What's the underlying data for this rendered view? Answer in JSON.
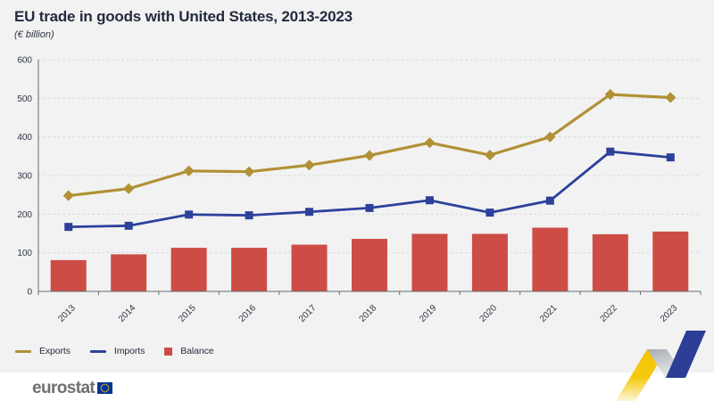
{
  "header": {
    "title": "EU trade in goods with United States, 2013-2023",
    "subtitle": "(€ billion)"
  },
  "chart_data": {
    "type": "combo-bar-line",
    "categories": [
      "2013",
      "2014",
      "2015",
      "2016",
      "2017",
      "2018",
      "2019",
      "2020",
      "2021",
      "2022",
      "2023"
    ],
    "series": [
      {
        "name": "Exports",
        "type": "line",
        "marker": "diamond",
        "color": "#b19135",
        "values": [
          248,
          266,
          312,
          310,
          327,
          352,
          385,
          353,
          400,
          510,
          502
        ]
      },
      {
        "name": "Imports",
        "type": "line",
        "marker": "square",
        "color": "#2d419b",
        "values": [
          167,
          170,
          199,
          197,
          206,
          216,
          236,
          204,
          235,
          362,
          347
        ]
      },
      {
        "name": "Balance",
        "type": "bar",
        "color": "#cd4d46",
        "values": [
          81,
          96,
          113,
          113,
          121,
          136,
          149,
          149,
          165,
          148,
          155
        ]
      }
    ],
    "ylim": [
      0,
      600
    ],
    "yticks": [
      0,
      100,
      200,
      300,
      400,
      500,
      600
    ],
    "xlabel": "",
    "ylabel": "",
    "grid": "dashed-horizontal",
    "legend_position": "bottom-left",
    "x_label_rotation": -45
  },
  "footer": {
    "brand": "eurostat"
  },
  "colors": {
    "background": "#f2f2f2",
    "footer_background": "#ffffff",
    "axis": "#666b70",
    "gridline": "#d8d8d8",
    "tick_text": "#2e3442",
    "title_text": "#242b3e",
    "eu_flag_blue": "#003399",
    "eu_flag_stars": "#ffcc00",
    "deco_yellow": "#f5c607",
    "deco_blue": "#2c3e96",
    "deco_gray": "#a7abb2"
  }
}
